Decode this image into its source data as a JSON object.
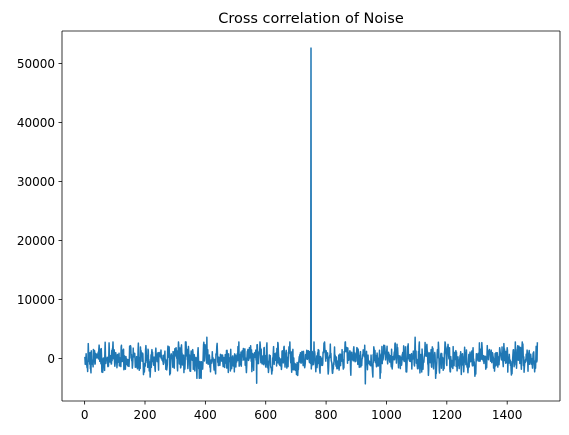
{
  "chart_data": {
    "type": "line",
    "title": "Cross correlation of Noise",
    "xlabel": "",
    "ylabel": "",
    "xlim": [
      -75,
      1575
    ],
    "ylim": [
      -7200,
      55500
    ],
    "x_ticks": [
      0,
      200,
      400,
      600,
      800,
      1000,
      1200,
      1400
    ],
    "y_ticks": [
      0,
      10000,
      20000,
      30000,
      40000,
      50000
    ],
    "grid": false,
    "series": [
      {
        "color": "#1f77b4",
        "x_range": [
          0,
          1500
        ],
        "n_points": 1501,
        "noise_band": [
          -4300,
          3600
        ],
        "noise_typical_amplitude": 1100,
        "peak": {
          "x": 750,
          "y": 52600
        },
        "notable_points": [
          {
            "x": 405,
            "y": 3600
          },
          {
            "x": 570,
            "y": -4200
          },
          {
            "x": 930,
            "y": -4300
          },
          {
            "x": 1095,
            "y": 3600
          }
        ]
      }
    ]
  }
}
